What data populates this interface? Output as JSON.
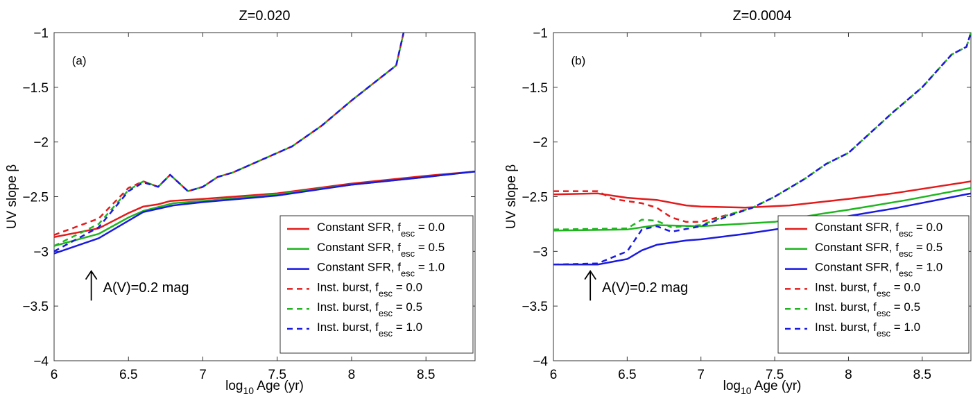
{
  "chart_data": [
    {
      "type": "line",
      "title": "Z=0.020",
      "panel_label": "(a)",
      "xlabel": "log10 Age (yr)",
      "xlabel_parts": {
        "base": "log",
        "sub": "10",
        "rest": " Age (yr)"
      },
      "ylabel": "UV slope β",
      "xlim": [
        6,
        8.83
      ],
      "ylim": [
        -4,
        -1
      ],
      "xticks": [
        "6",
        "6.5",
        "7",
        "7.5",
        "8",
        "8.5"
      ],
      "xtick_values": [
        6,
        6.5,
        7,
        7.5,
        8,
        8.5
      ],
      "yticks": [
        "−4",
        "−3.5",
        "−3",
        "−2.5",
        "−2",
        "−1.5",
        "−1"
      ],
      "ytick_values": [
        -4,
        -3.5,
        -3,
        -2.5,
        -2,
        -1.5,
        -1
      ],
      "grid": false,
      "legend_placement": "bottom-right",
      "annotation": {
        "text": "A(V)=0.2 mag",
        "arrow": "up-arrow",
        "x": 6.25,
        "y_from": -3.45,
        "y_to": -3.18
      },
      "series": [
        {
          "name": "Constant SFR, f_esc = 0.0",
          "label": "Constant SFR, f",
          "sub": "esc",
          "suffix": " = 0.0",
          "color": "#e41a1a",
          "dash": false,
          "x": [
            6,
            6.3,
            6.5,
            6.6,
            6.7,
            6.78,
            7,
            7.5,
            8,
            8.5,
            8.83
          ],
          "y": [
            -2.87,
            -2.79,
            -2.65,
            -2.59,
            -2.57,
            -2.54,
            -2.52,
            -2.47,
            -2.38,
            -2.31,
            -2.27
          ]
        },
        {
          "name": "Constant SFR, f_esc = 0.5",
          "label": "Constant SFR, f",
          "sub": "esc",
          "suffix": " = 0.5",
          "color": "#1fb51f",
          "dash": false,
          "x": [
            6,
            6.3,
            6.5,
            6.6,
            6.8,
            7,
            7.5,
            8,
            8.5,
            8.83
          ],
          "y": [
            -2.95,
            -2.84,
            -2.69,
            -2.63,
            -2.56,
            -2.54,
            -2.48,
            -2.39,
            -2.32,
            -2.27
          ]
        },
        {
          "name": "Constant SFR, f_esc = 1.0",
          "label": "Constant SFR, f",
          "sub": "esc",
          "suffix": " = 1.0",
          "color": "#1a1ae0",
          "dash": false,
          "x": [
            6,
            6.3,
            6.5,
            6.6,
            6.8,
            7,
            7.5,
            8,
            8.5,
            8.83
          ],
          "y": [
            -3.02,
            -2.88,
            -2.72,
            -2.64,
            -2.58,
            -2.55,
            -2.49,
            -2.39,
            -2.32,
            -2.27
          ]
        },
        {
          "name": "Inst. burst, f_esc = 0.0",
          "label": "Inst. burst, f",
          "sub": "esc",
          "suffix": " = 0.0",
          "color": "#e41a1a",
          "dash": true,
          "x": [
            6,
            6.3,
            6.5,
            6.6,
            6.7,
            6.78,
            6.9,
            7,
            7.1,
            7.2,
            7.4,
            7.6,
            7.8,
            8,
            8.3,
            8.35
          ],
          "y": [
            -2.85,
            -2.7,
            -2.42,
            -2.36,
            -2.41,
            -2.3,
            -2.45,
            -2.41,
            -2.32,
            -2.28,
            -2.16,
            -2.04,
            -1.85,
            -1.62,
            -1.3,
            -1.0
          ]
        },
        {
          "name": "Inst. burst, f_esc = 0.5",
          "label": "Inst. burst, f",
          "sub": "esc",
          "suffix": " = 0.5",
          "color": "#1fb51f",
          "dash": true,
          "x": [
            6,
            6.3,
            6.5,
            6.6,
            6.7,
            6.78,
            6.9,
            7,
            7.1,
            7.2,
            7.4,
            7.6,
            7.8,
            8,
            8.3,
            8.35
          ],
          "y": [
            -2.95,
            -2.75,
            -2.44,
            -2.36,
            -2.41,
            -2.3,
            -2.45,
            -2.41,
            -2.32,
            -2.28,
            -2.16,
            -2.04,
            -1.85,
            -1.62,
            -1.3,
            -1.0
          ]
        },
        {
          "name": "Inst. burst, f_esc = 1.0",
          "label": "Inst. burst, f",
          "sub": "esc",
          "suffix": " = 1.0",
          "color": "#1a1ae0",
          "dash": true,
          "x": [
            6,
            6.3,
            6.5,
            6.6,
            6.7,
            6.78,
            6.9,
            7,
            7.1,
            7.2,
            7.4,
            7.6,
            7.8,
            8,
            8.3,
            8.35
          ],
          "y": [
            -3.0,
            -2.78,
            -2.45,
            -2.37,
            -2.41,
            -2.3,
            -2.45,
            -2.41,
            -2.32,
            -2.28,
            -2.16,
            -2.04,
            -1.85,
            -1.62,
            -1.3,
            -1.0
          ]
        }
      ]
    },
    {
      "type": "line",
      "title": "Z=0.0004",
      "panel_label": "(b)",
      "xlabel": "log10 Age (yr)",
      "xlabel_parts": {
        "base": "log",
        "sub": "10",
        "rest": " Age (yr)"
      },
      "ylabel": "UV slope β",
      "xlim": [
        6,
        8.83
      ],
      "ylim": [
        -4,
        -1
      ],
      "xticks": [
        "6",
        "6.5",
        "7",
        "7.5",
        "8",
        "8.5"
      ],
      "xtick_values": [
        6,
        6.5,
        7,
        7.5,
        8,
        8.5
      ],
      "yticks": [
        "−4",
        "−3.5",
        "−3",
        "−2.5",
        "−2",
        "−1.5",
        "−1"
      ],
      "ytick_values": [
        -4,
        -3.5,
        -3,
        -2.5,
        -2,
        -1.5,
        -1
      ],
      "grid": false,
      "legend_placement": "bottom-right",
      "annotation": {
        "text": "A(V)=0.2 mag",
        "arrow": "up-arrow",
        "x": 6.25,
        "y_from": -3.45,
        "y_to": -3.18
      },
      "series": [
        {
          "name": "Constant SFR, f_esc = 0.0",
          "label": "Constant SFR, f",
          "sub": "esc",
          "suffix": " = 0.0",
          "color": "#e41a1a",
          "dash": false,
          "x": [
            6,
            6.3,
            6.5,
            6.7,
            6.9,
            7,
            7.3,
            7.6,
            8,
            8.3,
            8.83
          ],
          "y": [
            -2.48,
            -2.47,
            -2.51,
            -2.53,
            -2.58,
            -2.59,
            -2.6,
            -2.58,
            -2.52,
            -2.47,
            -2.36
          ]
        },
        {
          "name": "Constant SFR, f_esc = 0.5",
          "label": "Constant SFR, f",
          "sub": "esc",
          "suffix": " = 0.5",
          "color": "#1fb51f",
          "dash": false,
          "x": [
            6,
            6.5,
            6.7,
            7,
            7.5,
            7.8,
            8,
            8.4,
            8.83
          ],
          "y": [
            -2.81,
            -2.8,
            -2.76,
            -2.77,
            -2.73,
            -2.66,
            -2.62,
            -2.53,
            -2.42
          ]
        },
        {
          "name": "Constant SFR, f_esc = 1.0",
          "label": "Constant SFR, f",
          "sub": "esc",
          "suffix": " = 1.0",
          "color": "#1a1ae0",
          "dash": false,
          "x": [
            6,
            6.3,
            6.5,
            6.6,
            6.7,
            6.9,
            7,
            7.3,
            7.6,
            7.9,
            8.3,
            8.83
          ],
          "y": [
            -3.12,
            -3.12,
            -3.07,
            -2.99,
            -2.94,
            -2.9,
            -2.89,
            -2.84,
            -2.78,
            -2.7,
            -2.61,
            -2.47
          ]
        },
        {
          "name": "Inst. burst, f_esc = 0.0",
          "label": "Inst. burst, f",
          "sub": "esc",
          "suffix": " = 0.0",
          "color": "#e41a1a",
          "dash": true,
          "x": [
            6,
            6.3,
            6.4,
            6.6,
            6.7,
            6.8,
            6.9,
            7,
            7.2,
            7.35,
            7.5,
            7.7,
            7.85,
            8,
            8.3,
            8.5,
            8.7,
            8.8,
            8.83
          ],
          "y": [
            -2.45,
            -2.45,
            -2.52,
            -2.56,
            -2.6,
            -2.69,
            -2.73,
            -2.73,
            -2.66,
            -2.6,
            -2.5,
            -2.34,
            -2.2,
            -2.1,
            -1.73,
            -1.5,
            -1.2,
            -1.13,
            -1.0
          ]
        },
        {
          "name": "Inst. burst, f_esc = 0.5",
          "label": "Inst. burst, f",
          "sub": "esc",
          "suffix": " = 0.5",
          "color": "#1fb51f",
          "dash": true,
          "x": [
            6,
            6.5,
            6.6,
            6.7,
            6.8,
            7,
            7.2,
            7.35,
            7.5,
            7.7,
            7.85,
            8,
            8.3,
            8.5,
            8.7,
            8.8,
            8.83
          ],
          "y": [
            -2.8,
            -2.79,
            -2.71,
            -2.72,
            -2.78,
            -2.76,
            -2.66,
            -2.6,
            -2.5,
            -2.34,
            -2.2,
            -2.1,
            -1.73,
            -1.5,
            -1.2,
            -1.13,
            -1.0
          ]
        },
        {
          "name": "Inst. burst, f_esc = 1.0",
          "label": "Inst. burst, f",
          "sub": "esc",
          "suffix": " = 1.0",
          "color": "#1a1ae0",
          "dash": true,
          "x": [
            6,
            6.3,
            6.5,
            6.6,
            6.7,
            6.8,
            7,
            7.2,
            7.35,
            7.5,
            7.7,
            7.85,
            8,
            8.3,
            8.5,
            8.7,
            8.8,
            8.83
          ],
          "y": [
            -3.12,
            -3.11,
            -3.0,
            -2.8,
            -2.77,
            -2.82,
            -2.77,
            -2.67,
            -2.6,
            -2.5,
            -2.34,
            -2.2,
            -2.1,
            -1.73,
            -1.5,
            -1.2,
            -1.13,
            -1.0
          ]
        }
      ]
    }
  ]
}
